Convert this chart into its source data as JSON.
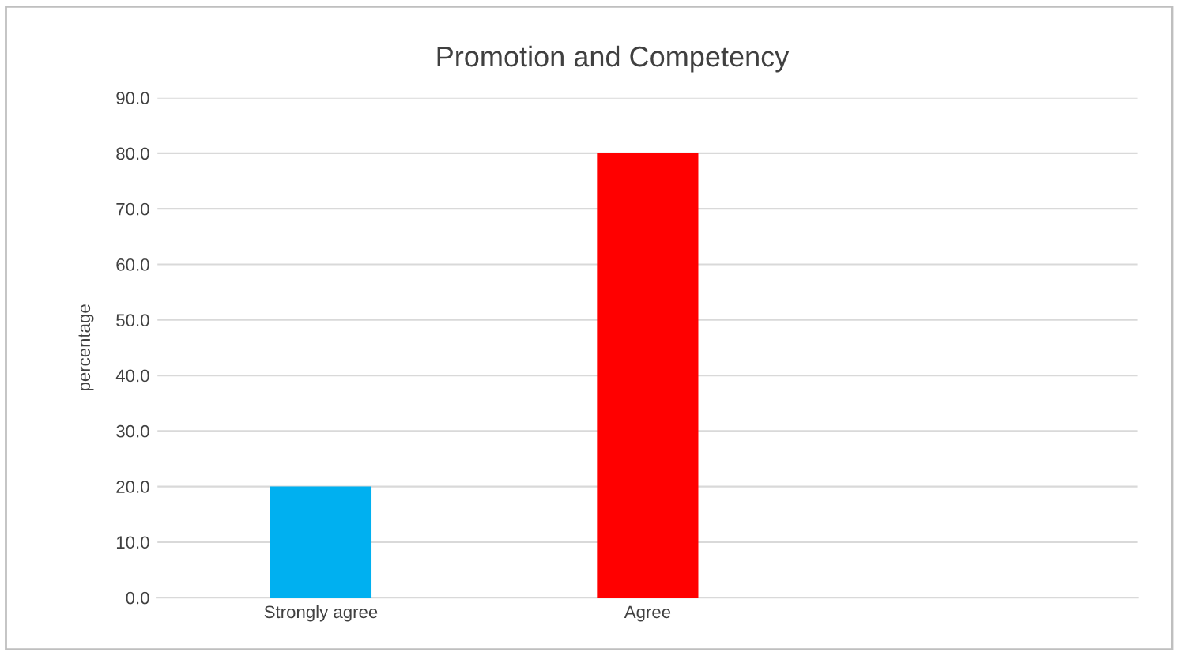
{
  "chart_data": {
    "type": "bar",
    "title": "Promotion and Competency",
    "ylabel": "percentage",
    "categories": [
      "Strongly agree",
      "Agree",
      null
    ],
    "values": [
      20.0,
      80.0,
      null
    ],
    "colors": [
      "#00b0f0",
      "#ff0000",
      "#ff0000"
    ],
    "ylim": [
      0,
      90
    ],
    "yticks": [
      {
        "value": 0,
        "label": "0.0"
      },
      {
        "value": 10,
        "label": "10.0"
      },
      {
        "value": 20,
        "label": "20.0"
      },
      {
        "value": 30,
        "label": "30.0"
      },
      {
        "value": 40,
        "label": "40.0"
      },
      {
        "value": 50,
        "label": "50.0"
      },
      {
        "value": 60,
        "label": "60.0"
      },
      {
        "value": 70,
        "label": "70.0"
      },
      {
        "value": 80,
        "label": "80.0"
      },
      {
        "value": 90,
        "label": "90.0"
      }
    ],
    "grid": "y",
    "legend": false
  }
}
